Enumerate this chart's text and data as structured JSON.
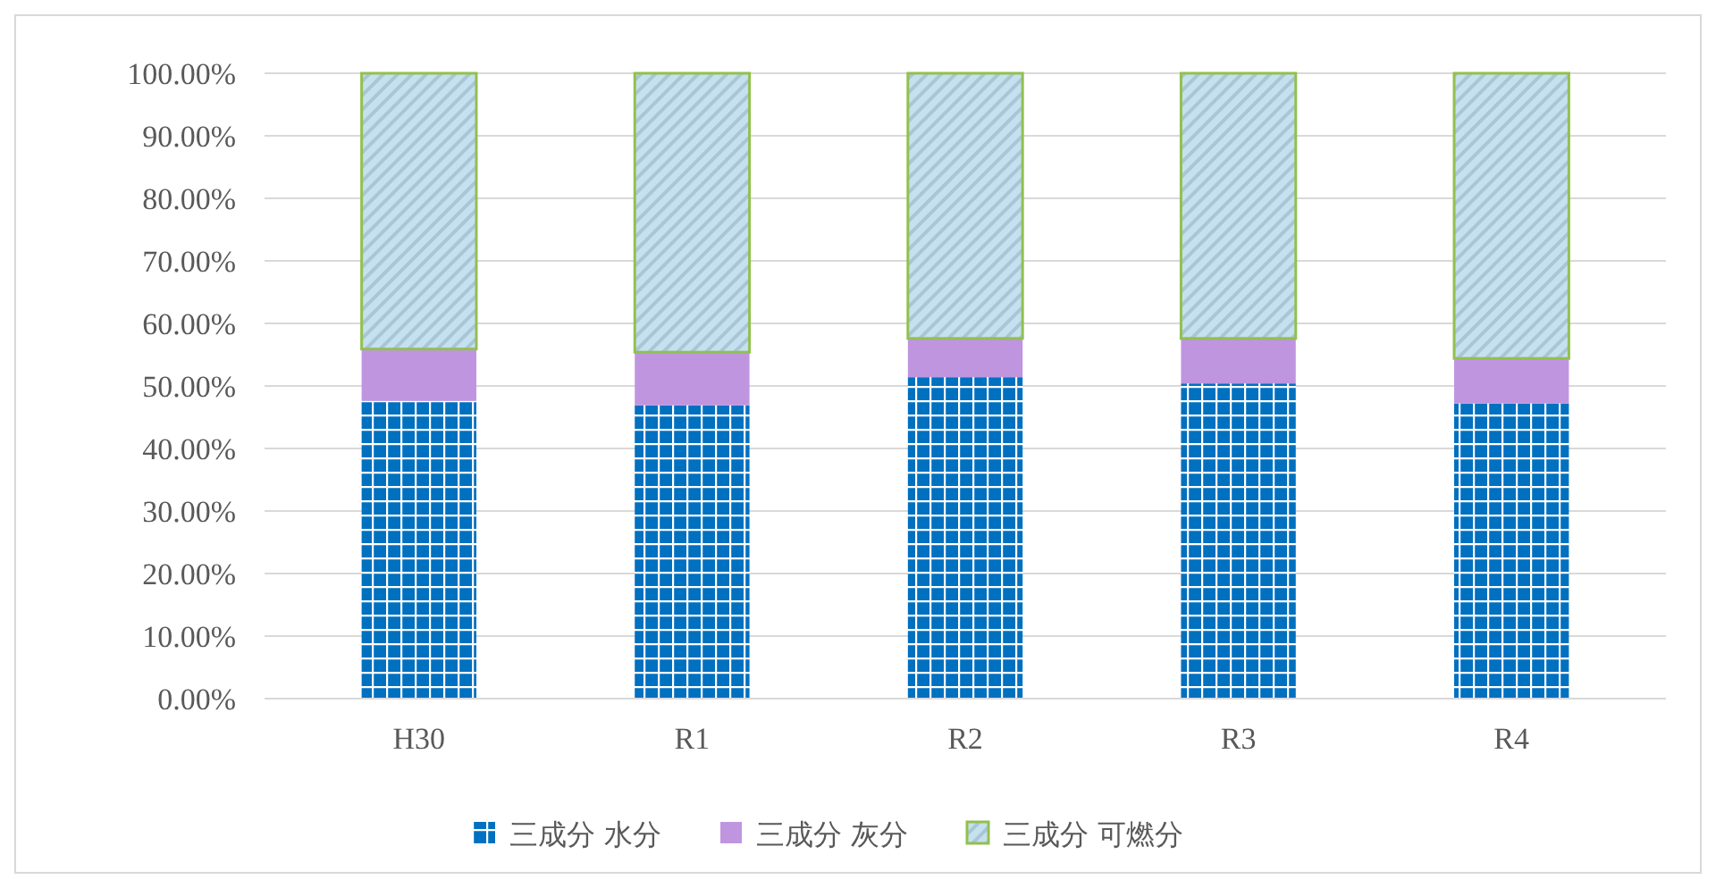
{
  "chart_data": {
    "type": "bar",
    "stacked": true,
    "categories": [
      "H30",
      "R1",
      "R2",
      "R3",
      "R4"
    ],
    "series": [
      {
        "name": "三成分 水分",
        "color": "#0070c0",
        "values": [
          47.6,
          46.9,
          51.4,
          50.4,
          47.2
        ]
      },
      {
        "name": "三成分 灰分",
        "color": "#bf95e0",
        "values": [
          8.3,
          8.5,
          6.2,
          7.2,
          7.2
        ]
      },
      {
        "name": "三成分 可燃分",
        "color": "#92c050",
        "values": [
          44.1,
          44.6,
          42.4,
          42.4,
          45.6
        ]
      }
    ],
    "ylim": [
      0,
      100
    ],
    "yticks": [
      {
        "value": 0,
        "label": "0.00%"
      },
      {
        "value": 10,
        "label": "10.00%"
      },
      {
        "value": 20,
        "label": "20.00%"
      },
      {
        "value": 30,
        "label": "30.00%"
      },
      {
        "value": 40,
        "label": "40.00%"
      },
      {
        "value": 50,
        "label": "50.00%"
      },
      {
        "value": 60,
        "label": "60.00%"
      },
      {
        "value": 70,
        "label": "70.00%"
      },
      {
        "value": 80,
        "label": "80.00%"
      },
      {
        "value": 90,
        "label": "90.00%"
      },
      {
        "value": 100,
        "label": "100.00%"
      }
    ],
    "grid": "y",
    "legend": "bottom"
  }
}
